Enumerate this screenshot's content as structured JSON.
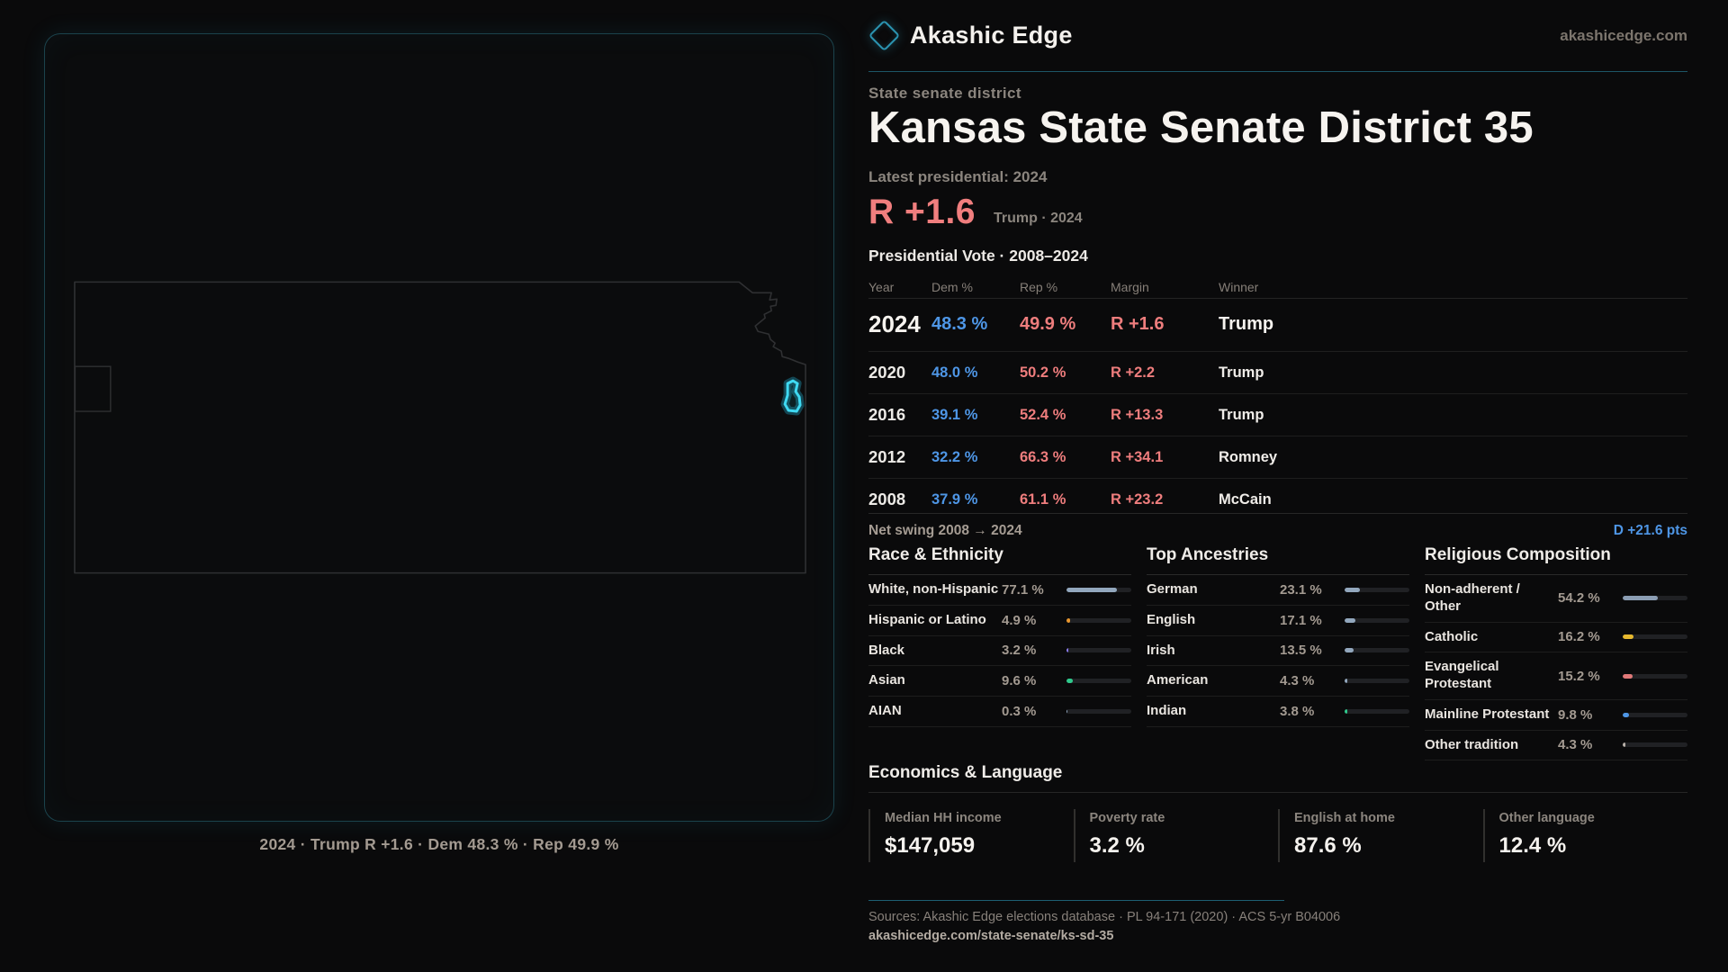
{
  "brand": {
    "name": "Akashic Edge",
    "site": "akashicedge.com"
  },
  "hero": {
    "kicker": "State senate district",
    "title": "Kansas State Senate District 35",
    "latest_label": "Latest presidential: 2024",
    "margin": "R +1.6",
    "margin_note": "Trump · 2024"
  },
  "vote_table": {
    "title": "Presidential Vote · 2008–2024",
    "columns": [
      "Year",
      "Dem %",
      "Rep %",
      "Margin",
      "Winner"
    ],
    "rows": [
      {
        "year": "2024",
        "dem": "48.3 %",
        "rep": "49.9 %",
        "margin": "R +1.6",
        "winner": "Trump"
      },
      {
        "year": "2020",
        "dem": "48.0 %",
        "rep": "50.2 %",
        "margin": "R +2.2",
        "winner": "Trump"
      },
      {
        "year": "2016",
        "dem": "39.1 %",
        "rep": "52.4 %",
        "margin": "R +13.3",
        "winner": "Trump"
      },
      {
        "year": "2012",
        "dem": "32.2 %",
        "rep": "66.3 %",
        "margin": "R +34.1",
        "winner": "Romney"
      },
      {
        "year": "2008",
        "dem": "37.9 %",
        "rep": "61.1 %",
        "margin": "R +23.2",
        "winner": "McCain"
      }
    ]
  },
  "net_swing": {
    "label": "Net swing 2008 → 2024",
    "value": "D +21.6 pts"
  },
  "race": {
    "title": "Race & Ethnicity",
    "items": [
      {
        "label": "White, non-Hispanic",
        "value": "77.1 %",
        "pct": 77.1,
        "color": "#92a7bd"
      },
      {
        "label": "Hispanic or Latino",
        "value": "4.9 %",
        "pct": 4.9,
        "color": "#e8962e"
      },
      {
        "label": "Black",
        "value": "3.2 %",
        "pct": 3.2,
        "color": "#8b7cf0"
      },
      {
        "label": "Asian",
        "value": "9.6 %",
        "pct": 9.6,
        "color": "#2fc98c"
      },
      {
        "label": "AIAN",
        "value": "0.3 %",
        "pct": 0.3,
        "color": "#92a7bd"
      }
    ]
  },
  "ancestries": {
    "title": "Top Ancestries",
    "items": [
      {
        "label": "German",
        "value": "23.1 %",
        "pct": 23.1,
        "color": "#92a7bd"
      },
      {
        "label": "English",
        "value": "17.1 %",
        "pct": 17.1,
        "color": "#92a7bd"
      },
      {
        "label": "Irish",
        "value": "13.5 %",
        "pct": 13.5,
        "color": "#92a7bd"
      },
      {
        "label": "American",
        "value": "4.3 %",
        "pct": 4.3,
        "color": "#92a7bd"
      },
      {
        "label": "Indian",
        "value": "3.8 %",
        "pct": 3.8,
        "color": "#2fc98c"
      }
    ]
  },
  "religion": {
    "title": "Religious Composition",
    "items": [
      {
        "label": "Non-adherent / Other",
        "value": "54.2 %",
        "pct": 54.2,
        "color": "#8b9db3"
      },
      {
        "label": "Catholic",
        "value": "16.2 %",
        "pct": 16.2,
        "color": "#e6b82e"
      },
      {
        "label": "Evangelical Protestant",
        "value": "15.2 %",
        "pct": 15.2,
        "color": "#e07878"
      },
      {
        "label": "Mainline Protestant",
        "value": "9.8 %",
        "pct": 9.8,
        "color": "#4e96e6"
      },
      {
        "label": "Other tradition",
        "value": "4.3 %",
        "pct": 4.3,
        "color": "#b8b1a9"
      }
    ]
  },
  "economics": {
    "title": "Economics & Language",
    "stats": [
      {
        "label": "Median HH income",
        "value": "$147,059"
      },
      {
        "label": "Poverty rate",
        "value": "3.2 %"
      },
      {
        "label": "English at home",
        "value": "87.6 %"
      },
      {
        "label": "Other language",
        "value": "12.4 %"
      }
    ]
  },
  "map": {
    "caption": "2024 · Trump R +1.6 · Dem 48.3 % · Rep 49.9 %"
  },
  "footer": {
    "sources": "Sources: Akashic Edge elections database · PL 94-171 (2020) · ACS 5-yr B04006",
    "permalink": "akashicedge.com/state-senate/ks-sd-35"
  }
}
